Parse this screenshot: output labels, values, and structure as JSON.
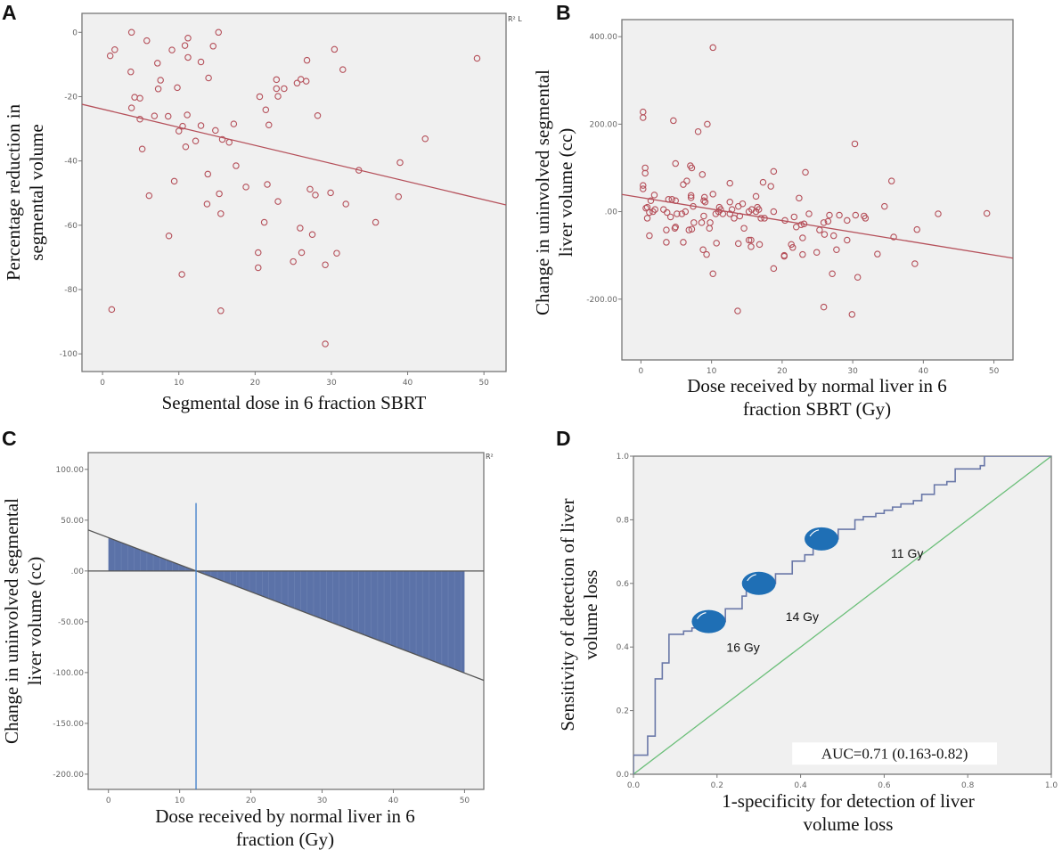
{
  "chart_data": [
    {
      "panel": "A",
      "type": "scatter",
      "xlabel": "Segmental  dose  in 6 fraction SBRT",
      "ylabel": [
        "Percentage reduction in",
        "segmental volume"
      ],
      "corner_text": "R² L",
      "xlim": [
        -2.7,
        52.9
      ],
      "ylim": [
        -105.5,
        5.9
      ],
      "xticks": [
        0,
        10,
        20,
        30,
        40,
        50
      ],
      "xtick_labels": [
        "0",
        "10",
        "20",
        "30",
        "40",
        "50"
      ],
      "yticks": [
        0,
        -20,
        -40,
        -60,
        -80,
        -100
      ],
      "ytick_labels": [
        "0",
        "-20",
        "-40",
        "-60",
        "-80",
        "-100"
      ],
      "grid": false,
      "marker_color": "#b5505a",
      "fit_line": {
        "intercept": -23.9,
        "slope": -0.563,
        "color": "#b5505a"
      },
      "points": [
        [
          1.0,
          -7.3
        ],
        [
          1.6,
          -5.4
        ],
        [
          3.8,
          0
        ],
        [
          3.7,
          -12.3
        ],
        [
          5.8,
          -2.6
        ],
        [
          9.1,
          -5.5
        ],
        [
          10.8,
          -4.1
        ],
        [
          11.2,
          -1.8
        ],
        [
          11.2,
          -7.8
        ],
        [
          12.9,
          -9.2
        ],
        [
          15.2,
          0
        ],
        [
          14.5,
          -4.3
        ],
        [
          7.2,
          -9.6
        ],
        [
          7.6,
          -14.9
        ],
        [
          7.3,
          -17.6
        ],
        [
          9.8,
          -17.2
        ],
        [
          13.9,
          -14.2
        ],
        [
          4.2,
          -20.2
        ],
        [
          4.9,
          -20.5
        ],
        [
          3.8,
          -23.5
        ],
        [
          4.9,
          -27.0
        ],
        [
          6.8,
          -26.0
        ],
        [
          8.6,
          -26.1
        ],
        [
          11.1,
          -25.7
        ],
        [
          12.9,
          -29.0
        ],
        [
          14.8,
          -30.5
        ],
        [
          10.0,
          -30.7
        ],
        [
          10.5,
          -29.2
        ],
        [
          10.9,
          -35.6
        ],
        [
          12.2,
          -33.8
        ],
        [
          5.2,
          -36.3
        ],
        [
          17.2,
          -28.5
        ],
        [
          15.7,
          -33.3
        ],
        [
          16.6,
          -34.2
        ],
        [
          17.5,
          -41.5
        ],
        [
          6.1,
          -50.8
        ],
        [
          9.4,
          -46.3
        ],
        [
          13.8,
          -44.1
        ],
        [
          8.7,
          -63.3
        ],
        [
          13.7,
          -53.4
        ],
        [
          15.3,
          -50.2
        ],
        [
          15.5,
          -56.4
        ],
        [
          18.8,
          -48.1
        ],
        [
          10.4,
          -75.3
        ],
        [
          1.2,
          -86.2
        ],
        [
          15.5,
          -86.6
        ],
        [
          20.6,
          -20.0
        ],
        [
          21.4,
          -24.1
        ],
        [
          21.8,
          -28.8
        ],
        [
          22.8,
          -14.7
        ],
        [
          22.8,
          -17.5
        ],
        [
          23.0,
          -19.9
        ],
        [
          23.8,
          -17.5
        ],
        [
          25.5,
          -15.8
        ],
        [
          26.0,
          -14.6
        ],
        [
          26.7,
          -15.2
        ],
        [
          26.8,
          -8.7
        ],
        [
          30.4,
          -5.3
        ],
        [
          31.5,
          -11.6
        ],
        [
          28.2,
          -25.9
        ],
        [
          21.6,
          -47.3
        ],
        [
          23.0,
          -52.6
        ],
        [
          21.2,
          -59.1
        ],
        [
          20.4,
          -68.5
        ],
        [
          20.4,
          -73.2
        ],
        [
          25.0,
          -71.3
        ],
        [
          25.9,
          -60.9
        ],
        [
          26.1,
          -68.5
        ],
        [
          27.2,
          -48.8
        ],
        [
          27.5,
          -62.9
        ],
        [
          27.9,
          -50.6
        ],
        [
          29.2,
          -72.3
        ],
        [
          29.2,
          -96.9
        ],
        [
          29.9,
          -49.9
        ],
        [
          30.7,
          -68.7
        ],
        [
          31.9,
          -53.4
        ],
        [
          33.6,
          -42.9
        ],
        [
          35.8,
          -59.1
        ],
        [
          38.8,
          -51.1
        ],
        [
          39.0,
          -40.5
        ],
        [
          42.3,
          -33.1
        ],
        [
          49.1,
          -8.1
        ]
      ]
    },
    {
      "panel": "B",
      "type": "scatter",
      "xlabel": [
        "Dose received by normal liver in 6",
        "fraction SBRT (Gy)"
      ],
      "ylabel": [
        "Change in uninvolved segmental",
        "liver volume (cc)"
      ],
      "xlim": [
        -2.7,
        52.7
      ],
      "ylim": [
        -339,
        439
      ],
      "xticks": [
        0,
        10,
        20,
        30,
        40,
        50
      ],
      "xtick_labels": [
        "0",
        "10",
        "20",
        "30",
        "40",
        "50"
      ],
      "yticks": [
        400,
        200,
        0,
        -200
      ],
      "ytick_labels": [
        "400.00",
        "200.00",
        ".00",
        "-200.00"
      ],
      "grid": false,
      "marker_color": "#b5505a",
      "fit_line": {
        "intercept": 32.2,
        "slope": -2.63,
        "color": "#b5505a"
      },
      "points": [
        [
          10.2,
          375
        ],
        [
          0.3,
          228
        ],
        [
          0.3,
          215
        ],
        [
          4.6,
          208
        ],
        [
          9.4,
          200
        ],
        [
          8.1,
          183
        ],
        [
          30.3,
          155
        ],
        [
          0.6,
          100
        ],
        [
          0.6,
          88
        ],
        [
          4.9,
          110
        ],
        [
          7.0,
          105
        ],
        [
          7.2,
          100
        ],
        [
          8.7,
          85
        ],
        [
          18.8,
          92
        ],
        [
          23.3,
          90
        ],
        [
          35.5,
          70
        ],
        [
          6.5,
          70
        ],
        [
          6.0,
          62
        ],
        [
          12.6,
          65
        ],
        [
          17.3,
          67
        ],
        [
          18.4,
          58
        ],
        [
          0.3,
          60
        ],
        [
          0.3,
          52
        ],
        [
          1.9,
          38
        ],
        [
          7.1,
          37
        ],
        [
          7.1,
          32
        ],
        [
          9.0,
          33
        ],
        [
          10.2,
          40
        ],
        [
          16.3,
          35
        ],
        [
          22.4,
          31
        ],
        [
          34.5,
          12
        ],
        [
          42.1,
          -5
        ],
        [
          49.0,
          -4
        ],
        [
          0.9,
          10
        ],
        [
          0.7,
          8
        ],
        [
          1.4,
          25
        ],
        [
          1.2,
          -2
        ],
        [
          0.9,
          -15
        ],
        [
          1.7,
          0
        ],
        [
          2.0,
          5
        ],
        [
          3.2,
          5
        ],
        [
          3.7,
          -2
        ],
        [
          3.9,
          28
        ],
        [
          4.4,
          28
        ],
        [
          4.9,
          25
        ],
        [
          4.2,
          -12
        ],
        [
          5.1,
          -5
        ],
        [
          5.8,
          -5
        ],
        [
          6.3,
          0
        ],
        [
          7.4,
          12
        ],
        [
          8.9,
          25
        ],
        [
          8.9,
          -10
        ],
        [
          9.1,
          22
        ],
        [
          11.1,
          10
        ],
        [
          11.3,
          5
        ],
        [
          11.0,
          0
        ],
        [
          10.6,
          -5
        ],
        [
          11.6,
          -5
        ],
        [
          12.6,
          22
        ],
        [
          12.9,
          5
        ],
        [
          13.2,
          -15
        ],
        [
          12.6,
          -5
        ],
        [
          13.8,
          12
        ],
        [
          14.4,
          18
        ],
        [
          14.0,
          -10
        ],
        [
          15.3,
          0
        ],
        [
          15.7,
          5
        ],
        [
          16.3,
          0
        ],
        [
          16.5,
          10
        ],
        [
          16.7,
          5
        ],
        [
          17.0,
          -15
        ],
        [
          17.5,
          -15
        ],
        [
          18.8,
          0
        ],
        [
          20.4,
          -20
        ],
        [
          21.7,
          -12
        ],
        [
          22.0,
          -35
        ],
        [
          22.7,
          -30
        ],
        [
          23.1,
          -28
        ],
        [
          23.8,
          -5
        ],
        [
          25.3,
          -42
        ],
        [
          25.9,
          -25
        ],
        [
          26.5,
          -22
        ],
        [
          26.7,
          -8
        ],
        [
          28.1,
          -8
        ],
        [
          29.2,
          -20
        ],
        [
          30.4,
          -8
        ],
        [
          31.6,
          -10
        ],
        [
          31.8,
          -15
        ],
        [
          1.2,
          -55
        ],
        [
          3.6,
          -42
        ],
        [
          3.6,
          -70
        ],
        [
          4.8,
          -38
        ],
        [
          4.9,
          -35
        ],
        [
          6.0,
          -70
        ],
        [
          6.8,
          -42
        ],
        [
          7.2,
          -40
        ],
        [
          7.5,
          -25
        ],
        [
          8.6,
          -25
        ],
        [
          9.7,
          -38
        ],
        [
          9.8,
          -25
        ],
        [
          8.8,
          -87
        ],
        [
          9.3,
          -98
        ],
        [
          10.7,
          -72
        ],
        [
          10.2,
          -142
        ],
        [
          13.8,
          -73
        ],
        [
          14.6,
          -38
        ],
        [
          15.3,
          -65
        ],
        [
          15.6,
          -65
        ],
        [
          15.6,
          -80
        ],
        [
          16.8,
          -75
        ],
        [
          18.8,
          -130
        ],
        [
          20.3,
          -100
        ],
        [
          20.3,
          -102
        ],
        [
          21.3,
          -75
        ],
        [
          21.5,
          -82
        ],
        [
          22.9,
          -60
        ],
        [
          22.9,
          -98
        ],
        [
          24.9,
          -93
        ],
        [
          26.0,
          -52
        ],
        [
          27.3,
          -55
        ],
        [
          27.7,
          -87
        ],
        [
          29.2,
          -65
        ],
        [
          27.1,
          -142
        ],
        [
          30.7,
          -150
        ],
        [
          33.5,
          -97
        ],
        [
          35.8,
          -58
        ],
        [
          38.8,
          -119
        ],
        [
          39.1,
          -41
        ],
        [
          13.7,
          -227
        ],
        [
          25.9,
          -218
        ],
        [
          29.9,
          -235
        ]
      ]
    },
    {
      "panel": "C",
      "type": "area",
      "xlabel": [
        "Dose received by normal liver in 6",
        "fraction (Gy)"
      ],
      "ylabel": [
        "Change in uninvolved segmental",
        "liver volume (cc)"
      ],
      "corner_text": "R²",
      "xlim": [
        -2.84,
        52.7
      ],
      "ylim": [
        -215,
        116.5
      ],
      "xticks": [
        0,
        10,
        20,
        30,
        40,
        50
      ],
      "xtick_labels": [
        "0",
        "10",
        "20",
        "30",
        "40",
        "50"
      ],
      "yticks": [
        100,
        50,
        0,
        -50,
        -100,
        -150,
        -200
      ],
      "ytick_labels": [
        "100.00",
        "50.00",
        ".00",
        "-50.00",
        "-100.00",
        "-150.00",
        "-200.00"
      ],
      "grid": false,
      "fit_line": {
        "intercept": 32.8,
        "slope": -2.665,
        "color": "#555555"
      },
      "fill_range": [
        0,
        50
      ],
      "fill_color": "#5b72a8",
      "reference_line_x": 12.3,
      "reference_line_top": 66.8,
      "reference_line_color": "#3a7cc9"
    },
    {
      "panel": "D",
      "type": "line",
      "xlabel": [
        "1-specificity for detection of liver",
        "volume loss"
      ],
      "ylabel": [
        "Sensitivity of detection of liver",
        "volume loss"
      ],
      "xlim": [
        0,
        1
      ],
      "ylim": [
        0,
        1
      ],
      "xticks": [
        0,
        0.2,
        0.4,
        0.6,
        0.8,
        1.0
      ],
      "xtick_labels": [
        "0.0",
        "0.2",
        "0.4",
        "0.6",
        "0.8",
        "1.0"
      ],
      "yticks": [
        0,
        0.2,
        0.4,
        0.6,
        0.8,
        1.0
      ],
      "ytick_labels": [
        "0.0",
        "0.2",
        "0.4",
        "0.6",
        "0.8",
        "1.0"
      ],
      "grid": false,
      "roc_color": "#6a78a8",
      "diagonal_color": "#6cbf7a",
      "roc_points": [
        [
          0,
          0.06
        ],
        [
          0.034,
          0.12
        ],
        [
          0.052,
          0.3
        ],
        [
          0.069,
          0.35
        ],
        [
          0.085,
          0.44
        ],
        [
          0.1,
          0.44
        ],
        [
          0.12,
          0.45
        ],
        [
          0.14,
          0.46
        ],
        [
          0.16,
          0.47
        ],
        [
          0.18,
          0.48
        ],
        [
          0.22,
          0.5
        ],
        [
          0.22,
          0.52
        ],
        [
          0.26,
          0.53
        ],
        [
          0.26,
          0.56
        ],
        [
          0.27,
          0.58
        ],
        [
          0.3,
          0.6
        ],
        [
          0.34,
          0.63
        ],
        [
          0.38,
          0.65
        ],
        [
          0.38,
          0.67
        ],
        [
          0.41,
          0.69
        ],
        [
          0.43,
          0.71
        ],
        [
          0.45,
          0.74
        ],
        [
          0.49,
          0.77
        ],
        [
          0.53,
          0.78
        ],
        [
          0.53,
          0.8
        ],
        [
          0.55,
          0.81
        ],
        [
          0.58,
          0.82
        ],
        [
          0.6,
          0.83
        ],
        [
          0.62,
          0.84
        ],
        [
          0.64,
          0.85
        ],
        [
          0.67,
          0.86
        ],
        [
          0.69,
          0.88
        ],
        [
          0.72,
          0.89
        ],
        [
          0.72,
          0.91
        ],
        [
          0.75,
          0.92
        ],
        [
          0.77,
          0.93
        ],
        [
          0.77,
          0.96
        ],
        [
          0.82,
          0.96
        ],
        [
          0.83,
          0.97
        ],
        [
          0.84,
          0.98
        ],
        [
          0.84,
          1.0
        ],
        [
          1.0,
          1.0
        ]
      ],
      "marker_color": "#1f6fb5",
      "cutoffs": [
        {
          "label": "16 Gy",
          "x": 0.18,
          "y": 0.48
        },
        {
          "label": "14 Gy",
          "x": 0.3,
          "y": 0.6
        },
        {
          "label": "11 Gy",
          "x": 0.45,
          "y": 0.74
        }
      ],
      "annotation": "AUC=0.71 (0.163-0.82)"
    }
  ],
  "panel_letters": [
    "A",
    "B",
    "C",
    "D"
  ]
}
